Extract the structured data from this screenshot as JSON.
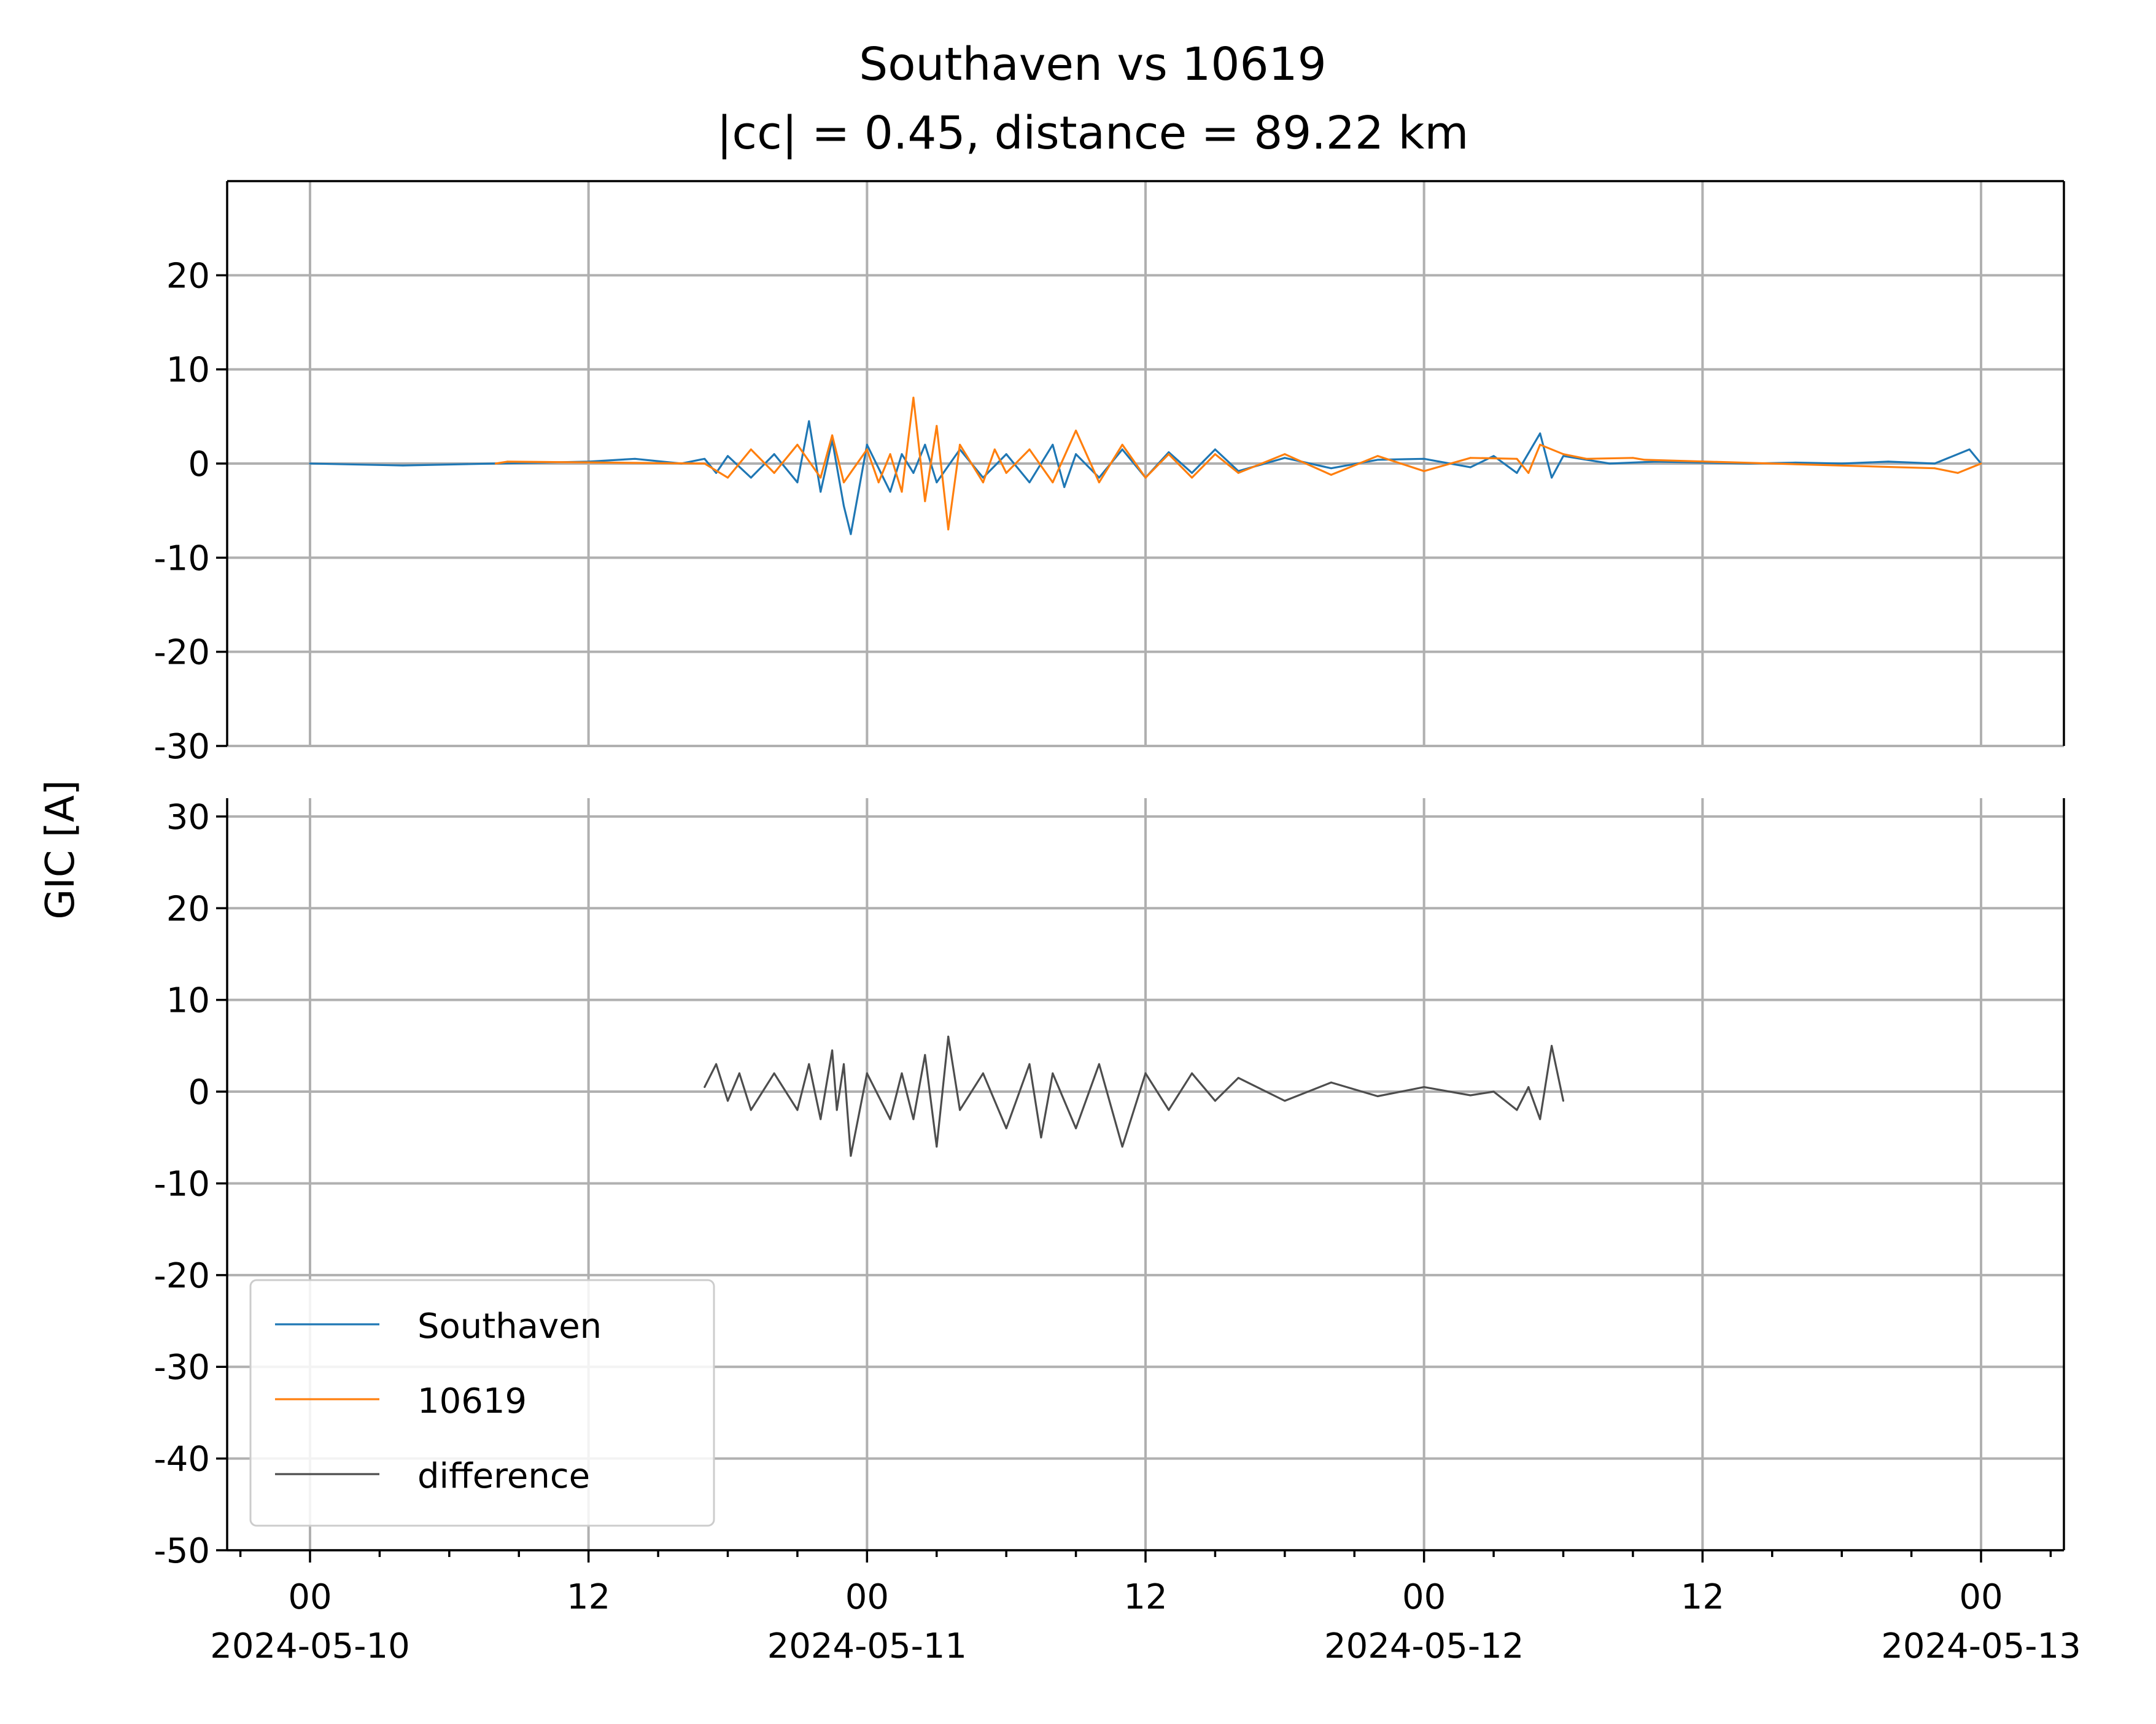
{
  "chart_data": {
    "type": "line",
    "title": "Southaven vs 10619",
    "subtitle": "|cc| = 0.45, distance = 89.22 km",
    "ylabel": "GIC [A]",
    "xlabel": "",
    "x_range": [
      "2024-05-10 00:00",
      "2024-05-13 00:00"
    ],
    "x_ticks": [
      {
        "hour": 0,
        "label": "00",
        "date": "2024-05-10"
      },
      {
        "hour": 12,
        "label": "12",
        "date": ""
      },
      {
        "hour": 24,
        "label": "00",
        "date": "2024-05-11"
      },
      {
        "hour": 36,
        "label": "12",
        "date": ""
      },
      {
        "hour": 48,
        "label": "00",
        "date": "2024-05-12"
      },
      {
        "hour": 60,
        "label": "12",
        "date": ""
      },
      {
        "hour": 72,
        "label": "00",
        "date": "2024-05-13"
      }
    ],
    "grid": true,
    "legend_position": "lower-left",
    "panels": [
      {
        "name": "top",
        "ylim": [
          -30,
          30
        ],
        "yticks": [
          -30,
          -20,
          -10,
          0,
          10,
          20
        ],
        "ytick_labels": [
          "-30",
          "-20",
          "-10",
          "0",
          "10",
          "20"
        ],
        "series": [
          {
            "name": "Southaven",
            "color": "#1f77b4",
            "x_hours": [
              0,
              4,
              8,
              12,
              14,
              16,
              17,
              17.5,
              18,
              19,
              20,
              21,
              21.5,
              22,
              22.5,
              23,
              23.3,
              24,
              25,
              25.5,
              26,
              26.5,
              27,
              28,
              29,
              30,
              31,
              32,
              32.5,
              33,
              34,
              35,
              36,
              37,
              38,
              39,
              40,
              42,
              44,
              46,
              48,
              50,
              51,
              52,
              53,
              53.5,
              54,
              56,
              58,
              60,
              62,
              64,
              66,
              68,
              70,
              71.5,
              72
            ],
            "values": [
              0,
              -0.2,
              0,
              0.2,
              0.5,
              0,
              0.5,
              -1,
              0.8,
              -1.5,
              1,
              -2,
              4.5,
              -3,
              2.5,
              -4.5,
              -7.5,
              2,
              -3,
              1,
              -1,
              2,
              -2,
              1.5,
              -1.5,
              1,
              -2,
              2,
              -2.5,
              1,
              -1.5,
              1.5,
              -1.5,
              1.2,
              -1,
              1.5,
              -0.8,
              0.6,
              -0.5,
              0.4,
              0.5,
              -0.4,
              0.8,
              -1,
              3.2,
              -1.5,
              0.8,
              0,
              0.2,
              0.1,
              0,
              0.1,
              0,
              0.2,
              0,
              1.5,
              0
            ]
          },
          {
            "name": "10619",
            "color": "#ff7f0e",
            "x_hours": [
              8,
              8.5,
              17,
              18,
              19,
              20,
              21,
              22,
              22.5,
              23,
              24,
              24.5,
              25,
              25.5,
              26,
              26.5,
              27,
              27.5,
              28,
              29,
              29.5,
              30,
              31,
              32,
              33,
              34,
              35,
              36,
              37,
              38,
              39,
              40,
              42,
              44,
              46,
              48,
              50,
              52,
              52.5,
              53,
              54,
              55,
              57,
              57.5,
              70,
              71,
              72
            ],
            "values": [
              0,
              0.2,
              0,
              -1.5,
              1.5,
              -1,
              2,
              -1.5,
              3,
              -2,
              1.5,
              -2,
              1,
              -3,
              7,
              -4,
              4,
              -7,
              2,
              -2,
              1.5,
              -1,
              1.5,
              -2,
              3.5,
              -2,
              2,
              -1.5,
              1,
              -1.5,
              1,
              -1,
              1,
              -1.2,
              0.8,
              -0.8,
              0.6,
              0.5,
              -1,
              2,
              1,
              0.5,
              0.6,
              0.4,
              -0.5,
              -1,
              0
            ]
          }
        ]
      },
      {
        "name": "bottom",
        "ylim": [
          -50,
          32
        ],
        "yticks": [
          -50,
          -40,
          -30,
          -20,
          -10,
          0,
          10,
          20,
          30
        ],
        "ytick_labels": [
          "-50",
          "-40",
          "-30",
          "-20",
          "-10",
          "0",
          "10",
          "20",
          "30"
        ],
        "series": [
          {
            "name": "difference",
            "color": "#4d4d4d",
            "x_hours": [
              17,
              17.5,
              18,
              18.5,
              19,
              20,
              21,
              21.5,
              22,
              22.5,
              22.7,
              23,
              23.3,
              24,
              25,
              25.5,
              26,
              26.5,
              27,
              27.5,
              28,
              29,
              30,
              31,
              31.5,
              32,
              33,
              34,
              35,
              36,
              37,
              38,
              39,
              40,
              42,
              44,
              46,
              48,
              50,
              51,
              52,
              52.5,
              53,
              53.5,
              54
            ],
            "values": [
              0.5,
              3,
              -1,
              2,
              -2,
              2,
              -2,
              3,
              -3,
              4.5,
              -2,
              3,
              -7,
              2,
              -3,
              2,
              -3,
              4,
              -6,
              6,
              -2,
              2,
              -4,
              3,
              -5,
              2,
              -4,
              3,
              -6,
              2,
              -2,
              2,
              -1,
              1.5,
              -1,
              1,
              -0.5,
              0.5,
              -0.4,
              0,
              -2,
              0.5,
              -3,
              5,
              -1
            ]
          }
        ]
      }
    ],
    "legend": [
      "Southaven",
      "10619",
      "difference"
    ]
  }
}
